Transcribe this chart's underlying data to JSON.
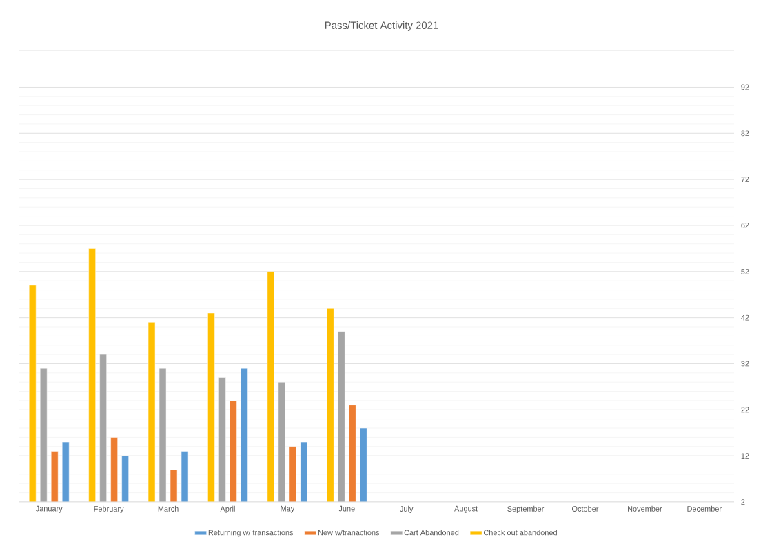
{
  "chart_data": {
    "type": "bar",
    "title": "Pass/Ticket Activity 2021",
    "categories": [
      "January",
      "February",
      "March",
      "April",
      "May",
      "June",
      "July",
      "August",
      "September",
      "October",
      "November",
      "December"
    ],
    "series": [
      {
        "name": "Returning w/ transactions",
        "color": "#5b9bd5",
        "values": [
          15,
          12,
          13,
          31,
          15,
          18,
          null,
          null,
          null,
          null,
          null,
          null
        ]
      },
      {
        "name": "New w/tranactions",
        "color": "#ed7d31",
        "values": [
          13,
          16,
          9,
          24,
          14,
          23,
          null,
          null,
          null,
          null,
          null,
          null
        ]
      },
      {
        "name": "Cart Abandoned",
        "color": "#a5a5a5",
        "values": [
          31,
          34,
          31,
          29,
          28,
          39,
          null,
          null,
          null,
          null,
          null,
          null
        ]
      },
      {
        "name": "Check out abandoned",
        "color": "#ffc000",
        "values": [
          49,
          57,
          41,
          43,
          52,
          44,
          null,
          null,
          null,
          null,
          null,
          null
        ]
      }
    ],
    "ylim": [
      2,
      100
    ],
    "yticks": [
      2,
      12,
      22,
      32,
      42,
      52,
      62,
      72,
      82,
      92
    ],
    "grid": "y",
    "legend": "bottom"
  }
}
